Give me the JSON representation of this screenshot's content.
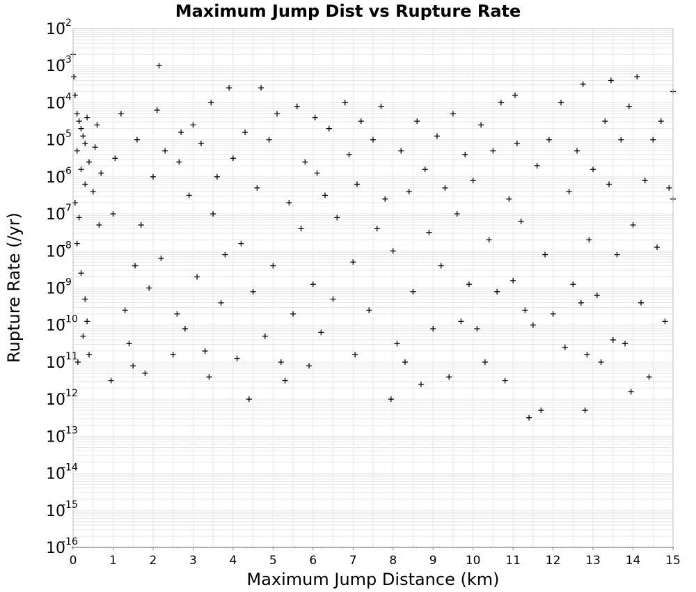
{
  "chart_data": {
    "type": "scatter",
    "title": "Maximum Jump Dist vs Rupture Rate",
    "xlabel": "Maximum Jump Distance (km)",
    "ylabel": "Rupture Rate (/yr)",
    "xlim": [
      0,
      15
    ],
    "ylim_exponent": [
      -16,
      -2
    ],
    "y_scale": "log",
    "marker": "plus",
    "marker_color": "#000000",
    "grid": true,
    "x_ticks": [
      "0",
      "1",
      "2",
      "3",
      "4",
      "5",
      "6",
      "7",
      "8",
      "9",
      "10",
      "11",
      "12",
      "13",
      "14",
      "15"
    ],
    "y_ticks": [
      {
        "base": "10",
        "exp": "-2"
      },
      {
        "base": "10",
        "exp": "-3"
      },
      {
        "base": "10",
        "exp": "-4"
      },
      {
        "base": "10",
        "exp": "-5"
      },
      {
        "base": "10",
        "exp": "-6"
      },
      {
        "base": "10",
        "exp": "-7"
      },
      {
        "base": "10",
        "exp": "-8"
      },
      {
        "base": "10",
        "exp": "-9"
      },
      {
        "base": "10",
        "exp": "-10"
      },
      {
        "base": "10",
        "exp": "-11"
      },
      {
        "base": "10",
        "exp": "-12"
      },
      {
        "base": "10",
        "exp": "-13"
      },
      {
        "base": "10",
        "exp": "-14"
      },
      {
        "base": "10",
        "exp": "-15"
      },
      {
        "base": "10",
        "exp": "-16"
      }
    ],
    "series": [
      {
        "points": [
          [
            0.0,
            -2.7
          ],
          [
            0.02,
            -3.3
          ],
          [
            0.05,
            -3.8
          ],
          [
            0.1,
            -4.3
          ],
          [
            0.15,
            -4.5
          ],
          [
            0.2,
            -4.7
          ],
          [
            0.25,
            -4.9
          ],
          [
            0.3,
            -5.1
          ],
          [
            0.35,
            -4.4
          ],
          [
            0.4,
            -5.6
          ],
          [
            0.1,
            -5.3
          ],
          [
            0.2,
            -5.8
          ],
          [
            0.3,
            -6.2
          ],
          [
            0.05,
            -6.7
          ],
          [
            0.15,
            -7.1
          ],
          [
            0.1,
            -7.8
          ],
          [
            0.2,
            -8.6
          ],
          [
            0.3,
            -9.3
          ],
          [
            0.35,
            -9.9
          ],
          [
            0.25,
            -10.3
          ],
          [
            0.4,
            -10.8
          ],
          [
            0.12,
            -11.0
          ],
          [
            0.5,
            -6.4
          ],
          [
            0.55,
            -5.2
          ],
          [
            0.6,
            -4.6
          ],
          [
            0.65,
            -7.3
          ],
          [
            0.7,
            -5.9
          ],
          [
            0.95,
            -11.5
          ],
          [
            1.0,
            -7.0
          ],
          [
            1.05,
            -5.5
          ],
          [
            1.2,
            -4.3
          ],
          [
            1.3,
            -9.6
          ],
          [
            1.4,
            -10.5
          ],
          [
            1.5,
            -11.1
          ],
          [
            1.55,
            -8.4
          ],
          [
            1.6,
            -5.0
          ],
          [
            1.7,
            -7.3
          ],
          [
            1.8,
            -11.3
          ],
          [
            1.9,
            -9.0
          ],
          [
            2.0,
            -6.0
          ],
          [
            2.1,
            -4.2
          ],
          [
            2.15,
            -3.0
          ],
          [
            2.2,
            -8.2
          ],
          [
            2.3,
            -5.3
          ],
          [
            2.5,
            -10.8
          ],
          [
            2.6,
            -9.7
          ],
          [
            2.65,
            -5.6
          ],
          [
            2.7,
            -4.8
          ],
          [
            2.8,
            -10.1
          ],
          [
            2.9,
            -6.5
          ],
          [
            3.0,
            -4.6
          ],
          [
            3.1,
            -8.7
          ],
          [
            3.2,
            -5.1
          ],
          [
            3.3,
            -10.7
          ],
          [
            3.4,
            -11.4
          ],
          [
            3.45,
            -4.0
          ],
          [
            3.5,
            -7.0
          ],
          [
            3.6,
            -6.0
          ],
          [
            3.7,
            -9.4
          ],
          [
            3.8,
            -8.1
          ],
          [
            3.9,
            -3.6
          ],
          [
            4.0,
            -5.5
          ],
          [
            4.1,
            -10.9
          ],
          [
            4.2,
            -7.8
          ],
          [
            4.3,
            -4.8
          ],
          [
            4.4,
            -12.0
          ],
          [
            4.5,
            -9.1
          ],
          [
            4.6,
            -6.3
          ],
          [
            4.7,
            -3.6
          ],
          [
            4.8,
            -10.3
          ],
          [
            4.9,
            -5.0
          ],
          [
            5.0,
            -8.4
          ],
          [
            5.1,
            -4.3
          ],
          [
            5.2,
            -11.0
          ],
          [
            5.3,
            -11.5
          ],
          [
            5.4,
            -6.7
          ],
          [
            5.5,
            -9.7
          ],
          [
            5.6,
            -4.1
          ],
          [
            5.7,
            -7.4
          ],
          [
            5.8,
            -5.6
          ],
          [
            5.9,
            -11.1
          ],
          [
            6.0,
            -8.9
          ],
          [
            6.05,
            -4.4
          ],
          [
            6.1,
            -5.9
          ],
          [
            6.2,
            -10.2
          ],
          [
            6.3,
            -6.5
          ],
          [
            6.4,
            -4.7
          ],
          [
            6.5,
            -9.3
          ],
          [
            6.6,
            -7.1
          ],
          [
            6.8,
            -4.0
          ],
          [
            6.9,
            -5.4
          ],
          [
            7.0,
            -8.3
          ],
          [
            7.05,
            -10.8
          ],
          [
            7.1,
            -6.2
          ],
          [
            7.2,
            -4.5
          ],
          [
            7.4,
            -9.6
          ],
          [
            7.5,
            -5.0
          ],
          [
            7.6,
            -7.4
          ],
          [
            7.7,
            -4.1
          ],
          [
            7.8,
            -6.6
          ],
          [
            7.95,
            -12.0
          ],
          [
            8.0,
            -8.0
          ],
          [
            8.1,
            -10.5
          ],
          [
            8.2,
            -5.3
          ],
          [
            8.3,
            -11.0
          ],
          [
            8.4,
            -6.4
          ],
          [
            8.5,
            -9.1
          ],
          [
            8.6,
            -4.5
          ],
          [
            8.7,
            -11.6
          ],
          [
            8.8,
            -5.8
          ],
          [
            8.9,
            -7.5
          ],
          [
            9.0,
            -10.1
          ],
          [
            9.1,
            -4.9
          ],
          [
            9.2,
            -8.4
          ],
          [
            9.3,
            -6.3
          ],
          [
            9.4,
            -11.4
          ],
          [
            9.5,
            -4.3
          ],
          [
            9.6,
            -7.0
          ],
          [
            9.7,
            -9.9
          ],
          [
            9.8,
            -5.4
          ],
          [
            9.9,
            -8.9
          ],
          [
            10.0,
            -6.1
          ],
          [
            10.1,
            -10.1
          ],
          [
            10.2,
            -4.6
          ],
          [
            10.3,
            -11.0
          ],
          [
            10.4,
            -7.7
          ],
          [
            10.5,
            -5.3
          ],
          [
            10.6,
            -9.1
          ],
          [
            10.7,
            -4.0
          ],
          [
            10.8,
            -11.5
          ],
          [
            10.9,
            -6.6
          ],
          [
            11.0,
            -8.8
          ],
          [
            11.05,
            -3.8
          ],
          [
            11.1,
            -5.1
          ],
          [
            11.2,
            -7.2
          ],
          [
            11.3,
            -9.6
          ],
          [
            11.4,
            -12.5
          ],
          [
            11.5,
            -10.0
          ],
          [
            11.6,
            -5.7
          ],
          [
            11.7,
            -12.3
          ],
          [
            11.8,
            -8.1
          ],
          [
            11.9,
            -5.0
          ],
          [
            12.0,
            -9.7
          ],
          [
            12.2,
            -4.0
          ],
          [
            12.3,
            -10.6
          ],
          [
            12.4,
            -6.4
          ],
          [
            12.5,
            -8.9
          ],
          [
            12.6,
            -5.3
          ],
          [
            12.7,
            -9.4
          ],
          [
            12.75,
            -3.5
          ],
          [
            12.8,
            -12.3
          ],
          [
            12.85,
            -10.8
          ],
          [
            12.9,
            -7.7
          ],
          [
            13.0,
            -5.8
          ],
          [
            13.1,
            -9.2
          ],
          [
            13.2,
            -11.0
          ],
          [
            13.3,
            -4.5
          ],
          [
            13.4,
            -6.2
          ],
          [
            13.45,
            -3.4
          ],
          [
            13.5,
            -10.4
          ],
          [
            13.6,
            -8.1
          ],
          [
            13.7,
            -5.0
          ],
          [
            13.8,
            -10.5
          ],
          [
            13.9,
            -4.1
          ],
          [
            13.95,
            -11.8
          ],
          [
            14.0,
            -7.3
          ],
          [
            14.1,
            -3.3
          ],
          [
            14.2,
            -9.4
          ],
          [
            14.3,
            -6.1
          ],
          [
            14.4,
            -11.4
          ],
          [
            14.5,
            -5.0
          ],
          [
            14.6,
            -7.9
          ],
          [
            14.7,
            -4.5
          ],
          [
            14.8,
            -9.9
          ],
          [
            14.9,
            -6.3
          ],
          [
            15.0,
            -3.7
          ],
          [
            15.0,
            -6.6
          ]
        ]
      }
    ]
  }
}
